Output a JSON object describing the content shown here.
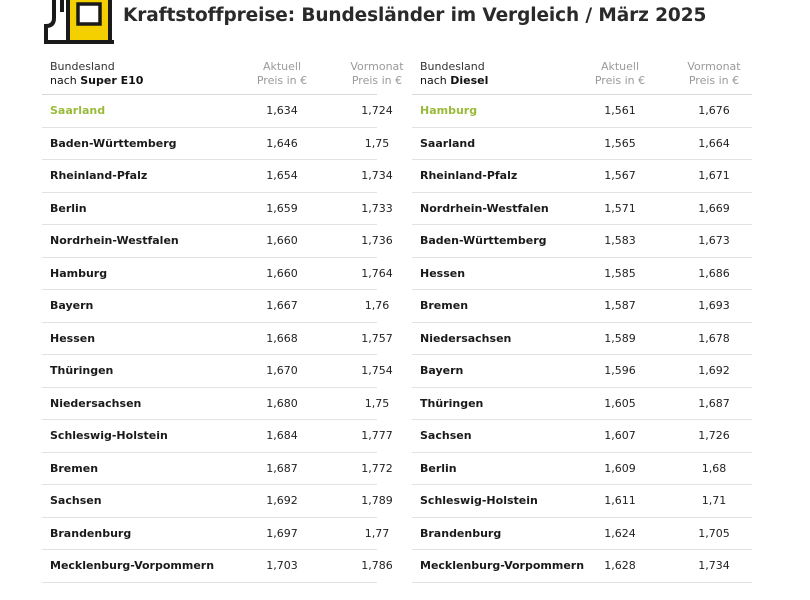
{
  "title": "Kraftstoffpreise: Bundesländer im Vergleich / März 2025",
  "colors": {
    "highlight": "#9aba3a",
    "logo_yellow": "#f5d000",
    "rule": "#d9d9d9"
  },
  "left": {
    "headers": {
      "c1_line1": "Bundesland",
      "c1_line2_prefix": "nach ",
      "c1_line2_bold": "Super E10",
      "c2_line1": "Aktuell",
      "c2_line2": "Preis in €",
      "c3_line1": "Vormonat",
      "c3_line2": "Preis in €"
    },
    "rows": [
      {
        "name": "Saarland",
        "current": "1,634",
        "previous": "1,724"
      },
      {
        "name": "Baden-Württemberg",
        "current": "1,646",
        "previous": "1,75"
      },
      {
        "name": "Rheinland-Pfalz",
        "current": "1,654",
        "previous": "1,734"
      },
      {
        "name": "Berlin",
        "current": "1,659",
        "previous": "1,733"
      },
      {
        "name": "Nordrhein-Westfalen",
        "current": "1,660",
        "previous": "1,736"
      },
      {
        "name": "Hamburg",
        "current": "1,660",
        "previous": "1,764"
      },
      {
        "name": "Bayern",
        "current": "1,667",
        "previous": "1,76"
      },
      {
        "name": "Hessen",
        "current": "1,668",
        "previous": "1,757"
      },
      {
        "name": "Thüringen",
        "current": "1,670",
        "previous": "1,754"
      },
      {
        "name": "Niedersachsen",
        "current": "1,680",
        "previous": "1,75"
      },
      {
        "name": "Schleswig-Holstein",
        "current": "1,684",
        "previous": "1,777"
      },
      {
        "name": "Bremen",
        "current": "1,687",
        "previous": "1,772"
      },
      {
        "name": "Sachsen",
        "current": "1,692",
        "previous": "1,789"
      },
      {
        "name": "Brandenburg",
        "current": "1,697",
        "previous": "1,77"
      },
      {
        "name": "Mecklenburg-Vorpommern",
        "current": "1,703",
        "previous": "1,786"
      }
    ]
  },
  "right": {
    "headers": {
      "c1_line1": "Bundesland",
      "c1_line2_prefix": "nach ",
      "c1_line2_bold": "Diesel",
      "c2_line1": "Aktuell",
      "c2_line2": "Preis in €",
      "c3_line1": "Vormonat",
      "c3_line2": "Preis in €"
    },
    "rows": [
      {
        "name": "Hamburg",
        "current": "1,561",
        "previous": "1,676"
      },
      {
        "name": "Saarland",
        "current": "1,565",
        "previous": "1,664"
      },
      {
        "name": "Rheinland-Pfalz",
        "current": "1,567",
        "previous": "1,671"
      },
      {
        "name": "Nordrhein-Westfalen",
        "current": "1,571",
        "previous": "1,669"
      },
      {
        "name": "Baden-Württemberg",
        "current": "1,583",
        "previous": "1,673"
      },
      {
        "name": "Hessen",
        "current": "1,585",
        "previous": "1,686"
      },
      {
        "name": "Bremen",
        "current": "1,587",
        "previous": "1,693"
      },
      {
        "name": "Niedersachsen",
        "current": "1,589",
        "previous": "1,678"
      },
      {
        "name": "Bayern",
        "current": "1,596",
        "previous": "1,692"
      },
      {
        "name": "Thüringen",
        "current": "1,605",
        "previous": "1,687"
      },
      {
        "name": "Sachsen",
        "current": "1,607",
        "previous": "1,726"
      },
      {
        "name": "Berlin",
        "current": "1,609",
        "previous": "1,68"
      },
      {
        "name": "Schleswig-Holstein",
        "current": "1,611",
        "previous": "1,71"
      },
      {
        "name": "Brandenburg",
        "current": "1,624",
        "previous": "1,705"
      },
      {
        "name": "Mecklenburg-Vorpommern",
        "current": "1,628",
        "previous": "1,734"
      }
    ]
  }
}
